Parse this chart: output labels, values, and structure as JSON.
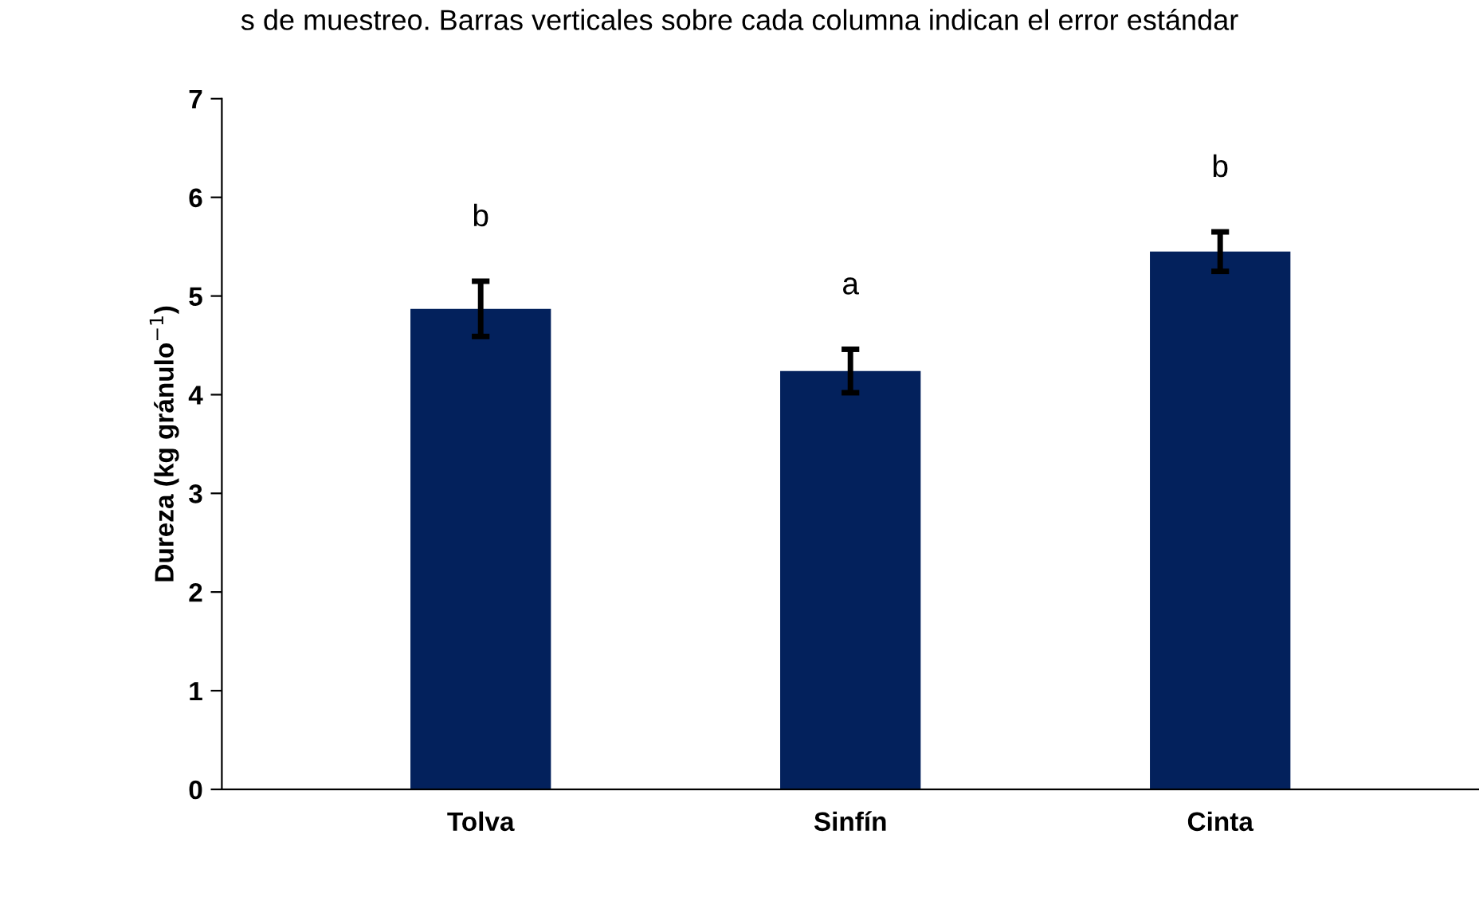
{
  "chart_data": {
    "type": "bar",
    "ylabel": "Dureza (kg gránulo$^{−1}$)",
    "categories": [
      "Tolva",
      "Sinfín",
      "Cinta"
    ],
    "values": [
      4.87,
      4.24,
      5.45
    ],
    "errors": [
      0.28,
      0.22,
      0.2
    ],
    "color": "#03215c",
    "ylim": [
      0,
      7
    ],
    "yticks": [
      0,
      1,
      2,
      3,
      4,
      5,
      6,
      7
    ],
    "grid": false,
    "annotations": [
      "s de muestreo. Barras verticales sobre cada columna indican el error estándar",
      "b",
      "a",
      "b"
    ]
  }
}
